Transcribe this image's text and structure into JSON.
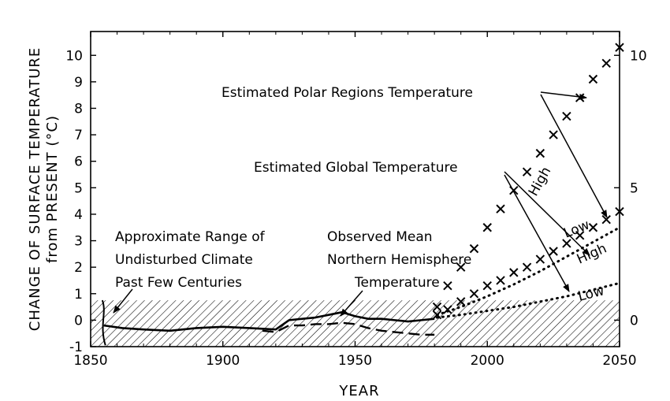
{
  "chart_data": {
    "type": "line",
    "xlabel": "YEAR",
    "ylabel": [
      "CHANGE OF SURFACE TEMPERATURE",
      "from PRESENT (°C)"
    ],
    "xlim": [
      1850,
      2050
    ],
    "ylim": [
      -1,
      10.9
    ],
    "x_ticks": [
      1850,
      1900,
      1950,
      2000,
      2050
    ],
    "y_ticks": [
      -1,
      0,
      1,
      2,
      3,
      4,
      5,
      6,
      7,
      8,
      9,
      10
    ],
    "right_y_ticks": [
      0,
      5,
      10
    ],
    "shaded_band": {
      "y_min": -1,
      "y_max": 0.75
    },
    "series": [
      {
        "style": "solid",
        "x": [
          1855,
          1862,
          1870,
          1880,
          1890,
          1900,
          1910,
          1920,
          1925,
          1930,
          1935,
          1940,
          1945,
          1950,
          1955,
          1960,
          1965,
          1970,
          1975,
          1980
        ],
        "y": [
          -0.2,
          -0.3,
          -0.35,
          -0.4,
          -0.3,
          -0.25,
          -0.3,
          -0.35,
          0.0,
          0.05,
          0.1,
          0.2,
          0.3,
          0.15,
          0.05,
          0.05,
          0.0,
          -0.05,
          0.0,
          0.05
        ]
      },
      {
        "style": "dashed",
        "x": [
          1915,
          1920,
          1925,
          1930,
          1935,
          1940,
          1945,
          1950,
          1955,
          1960,
          1965,
          1970,
          1975,
          1980
        ],
        "y": [
          -0.4,
          -0.45,
          -0.2,
          -0.2,
          -0.15,
          -0.15,
          -0.1,
          -0.15,
          -0.3,
          -0.4,
          -0.45,
          -0.5,
          -0.55,
          -0.55
        ]
      },
      {
        "style": "x",
        "x": [
          1981,
          1985,
          1990,
          1995,
          2000,
          2005,
          2010,
          2015,
          2020,
          2025,
          2030,
          2035,
          2040,
          2045,
          2050
        ],
        "y": [
          0.5,
          1.3,
          2.0,
          2.7,
          3.5,
          4.2,
          4.9,
          5.6,
          6.3,
          7.0,
          7.7,
          8.4,
          9.1,
          9.7,
          10.3
        ]
      },
      {
        "style": "x",
        "x": [
          1981,
          1985,
          1990,
          1995,
          2000,
          2005,
          2010,
          2015,
          2020,
          2025,
          2030,
          2035,
          2040,
          2045,
          2050
        ],
        "y": [
          0.2,
          0.4,
          0.7,
          1.0,
          1.3,
          1.5,
          1.8,
          2.0,
          2.3,
          2.6,
          2.9,
          3.2,
          3.5,
          3.8,
          4.1
        ]
      },
      {
        "style": "dotted",
        "x": [
          1981,
          1990,
          2000,
          2010,
          2020,
          2030,
          2040,
          2050
        ],
        "y": [
          0.2,
          0.5,
          0.9,
          1.35,
          1.85,
          2.4,
          2.95,
          3.5
        ]
      },
      {
        "style": "dotted",
        "x": [
          1981,
          1990,
          2000,
          2010,
          2020,
          2030,
          2040,
          2050
        ],
        "y": [
          0.1,
          0.2,
          0.35,
          0.5,
          0.7,
          0.9,
          1.15,
          1.4
        ]
      }
    ],
    "annotations": {
      "range": [
        "Approximate Range of",
        "Undisturbed Climate",
        "Past Few Centuries"
      ],
      "observed": [
        "Observed Mean",
        "Northern Hemisphere",
        "Temperature"
      ],
      "global": "Estimated Global Temperature",
      "polar": "Estimated Polar Regions Temperature",
      "high": "High",
      "low": "Low"
    }
  }
}
